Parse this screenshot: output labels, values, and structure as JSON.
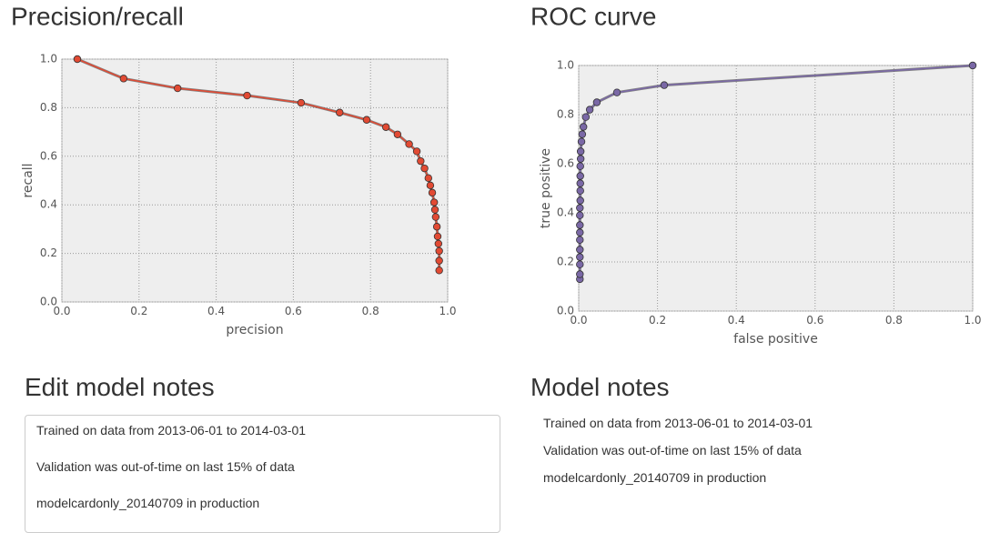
{
  "chart_data": [
    {
      "type": "line",
      "title": "Precision/recall",
      "xlabel": "precision",
      "ylabel": "recall",
      "x": [
        0.04,
        0.16,
        0.3,
        0.48,
        0.62,
        0.72,
        0.79,
        0.84,
        0.87,
        0.9,
        0.92,
        0.93,
        0.94,
        0.95,
        0.955,
        0.96,
        0.965,
        0.967,
        0.969,
        0.972,
        0.974,
        0.976,
        0.978,
        0.978,
        0.978
      ],
      "series": [
        {
          "color": "#e24a33",
          "values": [
            1.0,
            0.92,
            0.88,
            0.85,
            0.82,
            0.78,
            0.75,
            0.72,
            0.69,
            0.65,
            0.62,
            0.58,
            0.55,
            0.51,
            0.48,
            0.45,
            0.41,
            0.38,
            0.35,
            0.31,
            0.27,
            0.24,
            0.21,
            0.17,
            0.13
          ]
        }
      ],
      "xlim": [
        0,
        1
      ],
      "ylim": [
        0,
        1
      ],
      "xticks": [
        {
          "value": 0,
          "label": "0.0"
        },
        {
          "value": 0.2,
          "label": "0.2"
        },
        {
          "value": 0.4,
          "label": "0.4"
        },
        {
          "value": 0.6,
          "label": "0.6"
        },
        {
          "value": 0.8,
          "label": "0.8"
        },
        {
          "value": 1,
          "label": "1.0"
        }
      ],
      "yticks": [
        {
          "value": 0,
          "label": "0.0"
        },
        {
          "value": 0.2,
          "label": "0.2"
        },
        {
          "value": 0.4,
          "label": "0.4"
        },
        {
          "value": 0.6,
          "label": "0.6"
        },
        {
          "value": 0.8,
          "label": "0.8"
        },
        {
          "value": 1,
          "label": "1.0"
        }
      ],
      "grid": true
    },
    {
      "type": "line",
      "title": "ROC curve",
      "xlabel": "false positive",
      "ylabel": "true positive",
      "x": [
        0.003,
        0.003,
        0.003,
        0.003,
        0.003,
        0.003,
        0.003,
        0.003,
        0.003,
        0.003,
        0.004,
        0.004,
        0.004,
        0.004,
        0.004,
        0.005,
        0.005,
        0.007,
        0.009,
        0.012,
        0.018,
        0.028,
        0.046,
        0.097,
        0.217,
        1.0
      ],
      "series": [
        {
          "color": "#7a68a6",
          "values": [
            0.13,
            0.15,
            0.19,
            0.22,
            0.25,
            0.29,
            0.32,
            0.35,
            0.39,
            0.42,
            0.45,
            0.49,
            0.52,
            0.55,
            0.59,
            0.62,
            0.65,
            0.69,
            0.72,
            0.75,
            0.79,
            0.82,
            0.85,
            0.89,
            0.92,
            1.0
          ]
        }
      ],
      "xlim": [
        0,
        1
      ],
      "ylim": [
        0,
        1
      ],
      "xticks": [
        {
          "value": 0,
          "label": "0.0"
        },
        {
          "value": 0.2,
          "label": "0.2"
        },
        {
          "value": 0.4,
          "label": "0.4"
        },
        {
          "value": 0.6,
          "label": "0.6"
        },
        {
          "value": 0.8,
          "label": "0.8"
        },
        {
          "value": 1,
          "label": "1.0"
        }
      ],
      "yticks": [
        {
          "value": 0,
          "label": "0.0"
        },
        {
          "value": 0.2,
          "label": "0.2"
        },
        {
          "value": 0.4,
          "label": "0.4"
        },
        {
          "value": 0.6,
          "label": "0.6"
        },
        {
          "value": 0.8,
          "label": "0.8"
        },
        {
          "value": 1,
          "label": "1.0"
        }
      ],
      "grid": true
    }
  ],
  "edit_notes": {
    "title": "Edit model notes",
    "lines": [
      "Trained on data from 2013-06-01 to 2014-03-01",
      "Validation was out-of-time on last 15% of data",
      "modelcardonly_20140709 in production"
    ]
  },
  "model_notes": {
    "title": "Model notes",
    "lines": [
      "Trained on data from 2013-06-01 to 2014-03-01",
      "Validation was out-of-time on last 15% of data",
      "modelcardonly_20140709 in production"
    ]
  }
}
